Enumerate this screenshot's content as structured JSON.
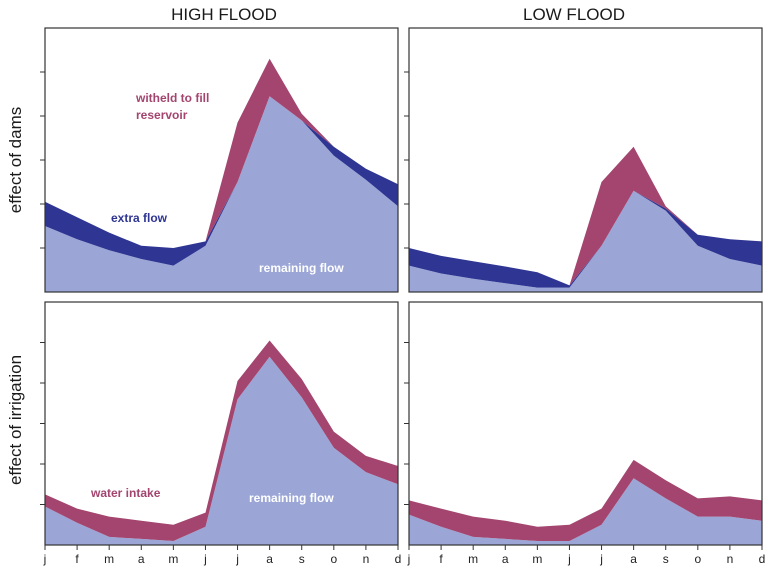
{
  "colors": {
    "remaining": "#9ba6d6",
    "extra": "#2e3592",
    "withheld": "#a3456f",
    "frame": "#333333"
  },
  "column_titles": [
    "HIGH FLOOD",
    "LOW FLOOD"
  ],
  "row_titles": [
    "effect of dams",
    "effect of irrigation"
  ],
  "months": [
    "j",
    "f",
    "m",
    "a",
    "m",
    "j",
    "j",
    "a",
    "s",
    "o",
    "n",
    "d"
  ],
  "annotations": {
    "withheld_line1": "witheld to fill",
    "withheld_line2": "reservoir",
    "extra_flow": "extra flow",
    "remaining_flow_dams": "remaining flow",
    "water_intake": "water intake",
    "remaining_flow_irrigation": "remaining flow"
  },
  "chart_data": [
    {
      "type": "area",
      "title": "HIGH FLOOD",
      "row": "effect of dams",
      "x": [
        "j",
        "f",
        "m",
        "a",
        "m",
        "j",
        "j",
        "a",
        "s",
        "o",
        "n",
        "d"
      ],
      "ylim": [
        0,
        6
      ],
      "series": [
        {
          "name": "remaining flow",
          "values": [
            1.5,
            1.2,
            0.95,
            0.75,
            0.6,
            1.05,
            2.5,
            4.45,
            3.9,
            3.1,
            2.55,
            1.95
          ]
        },
        {
          "name": "extra flow",
          "values": [
            0.55,
            0.5,
            0.4,
            0.3,
            0.4,
            0.1,
            0,
            0,
            0,
            0.2,
            0.25,
            0.5
          ]
        },
        {
          "name": "witheld to fill reservoir",
          "values": [
            0,
            0,
            0,
            0,
            0,
            0,
            1.35,
            0.85,
            0.15,
            0,
            0,
            0
          ]
        }
      ]
    },
    {
      "type": "area",
      "title": "LOW FLOOD",
      "row": "effect of dams",
      "x": [
        "j",
        "f",
        "m",
        "a",
        "m",
        "j",
        "j",
        "a",
        "s",
        "o",
        "n",
        "d"
      ],
      "ylim": [
        0,
        6
      ],
      "series": [
        {
          "name": "remaining flow",
          "values": [
            0.6,
            0.42,
            0.3,
            0.2,
            0.1,
            0.1,
            1.05,
            2.3,
            1.85,
            1.05,
            0.75,
            0.6
          ]
        },
        {
          "name": "extra flow",
          "values": [
            0.4,
            0.4,
            0.4,
            0.38,
            0.35,
            0.05,
            0,
            0,
            0.05,
            0.25,
            0.45,
            0.55
          ]
        },
        {
          "name": "witheld to fill reservoir",
          "values": [
            0,
            0,
            0,
            0,
            0,
            0,
            1.45,
            1.0,
            0.05,
            0,
            0,
            0
          ]
        }
      ]
    },
    {
      "type": "area",
      "title": "HIGH FLOOD",
      "row": "effect of irrigation",
      "x": [
        "j",
        "f",
        "m",
        "a",
        "m",
        "j",
        "j",
        "a",
        "s",
        "o",
        "n",
        "d"
      ],
      "ylim": [
        0,
        6
      ],
      "series": [
        {
          "name": "remaining flow",
          "values": [
            0.95,
            0.55,
            0.2,
            0.15,
            0.1,
            0.45,
            3.6,
            4.65,
            3.65,
            2.4,
            1.8,
            1.5
          ]
        },
        {
          "name": "water intake",
          "values": [
            0.3,
            0.35,
            0.5,
            0.45,
            0.4,
            0.35,
            0.45,
            0.4,
            0.45,
            0.4,
            0.4,
            0.45
          ]
        }
      ]
    },
    {
      "type": "area",
      "title": "LOW FLOOD",
      "row": "effect of irrigation",
      "x": [
        "j",
        "f",
        "m",
        "a",
        "m",
        "j",
        "j",
        "a",
        "s",
        "o",
        "n",
        "d"
      ],
      "ylim": [
        0,
        6
      ],
      "series": [
        {
          "name": "remaining flow",
          "values": [
            0.75,
            0.45,
            0.2,
            0.15,
            0.1,
            0.1,
            0.5,
            1.65,
            1.15,
            0.7,
            0.7,
            0.6
          ]
        },
        {
          "name": "water intake",
          "values": [
            0.35,
            0.45,
            0.5,
            0.45,
            0.35,
            0.4,
            0.4,
            0.45,
            0.45,
            0.45,
            0.5,
            0.5
          ]
        }
      ]
    }
  ]
}
